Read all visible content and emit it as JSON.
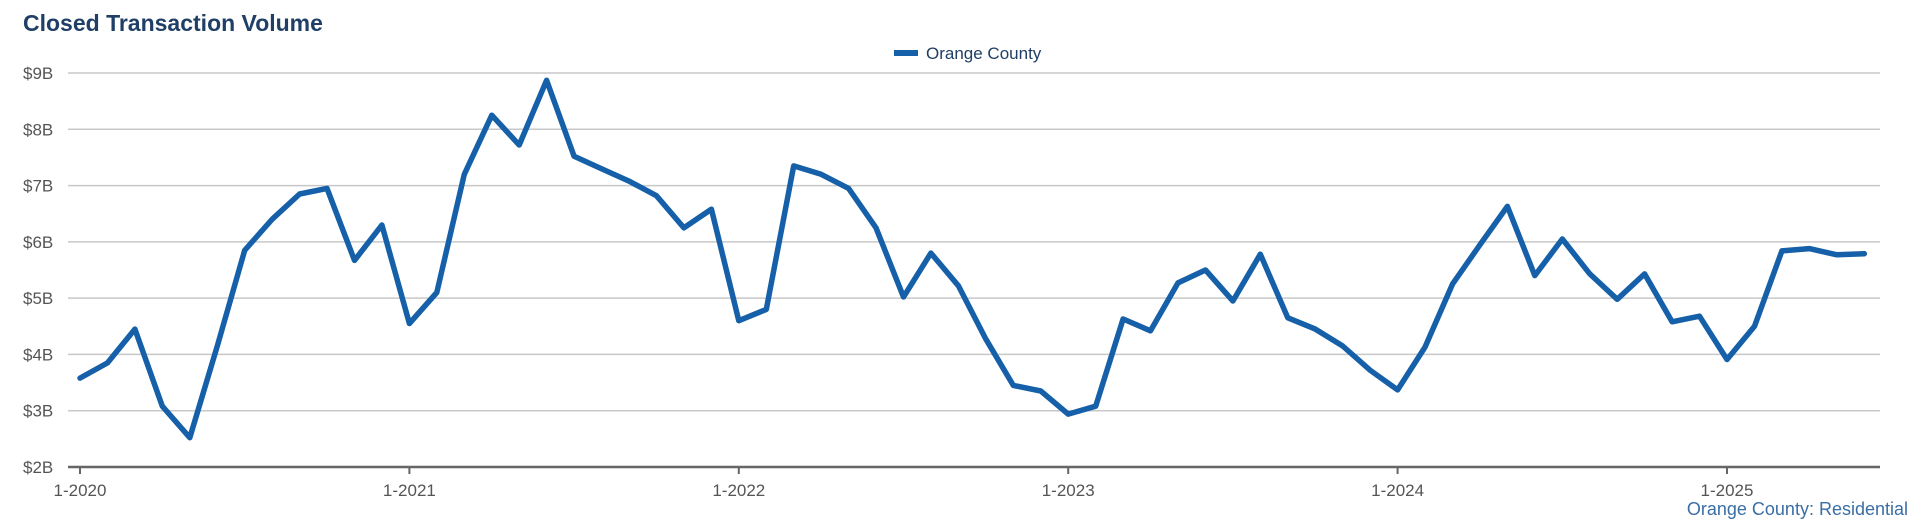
{
  "title": "Closed Transaction Volume",
  "footer": "Orange County: Residential",
  "colors": {
    "series": "#1560a8",
    "grid": "#c8c8c8",
    "axis": "#666666",
    "title": "#1f3f66"
  },
  "chart_data": {
    "type": "line",
    "title": "Closed Transaction Volume",
    "xlabel": "",
    "ylabel": "",
    "ylim": [
      2,
      9
    ],
    "y_unit": "billions USD",
    "y_ticks": [
      2,
      3,
      4,
      5,
      6,
      7,
      8,
      9
    ],
    "y_tick_labels": [
      "$2B",
      "$3B",
      "$4B",
      "$5B",
      "$6B",
      "$7B",
      "$8B",
      "$9B"
    ],
    "x_ticks": [
      "2020-01",
      "2021-01",
      "2022-01",
      "2023-01",
      "2024-01",
      "2025-01"
    ],
    "x_tick_labels": [
      "1-2020",
      "1-2021",
      "1-2022",
      "1-2023",
      "1-2024",
      "1-2025"
    ],
    "x_range": [
      "2020-01",
      "2025-07"
    ],
    "grid": true,
    "legend_position": "top-center",
    "series": [
      {
        "name": "Orange County",
        "color": "#1560a8",
        "points": [
          [
            "2020-01",
            3.58
          ],
          [
            "2020-02",
            3.85
          ],
          [
            "2020-03",
            4.45
          ],
          [
            "2020-04",
            3.08
          ],
          [
            "2020-05",
            2.52
          ],
          [
            "2020-06",
            4.15
          ],
          [
            "2020-07",
            5.85
          ],
          [
            "2020-08",
            6.4
          ],
          [
            "2020-09",
            6.85
          ],
          [
            "2020-10",
            6.95
          ],
          [
            "2020-11",
            5.67
          ],
          [
            "2020-12",
            6.3
          ],
          [
            "2021-01",
            4.55
          ],
          [
            "2021-02",
            5.1
          ],
          [
            "2021-03",
            7.2
          ],
          [
            "2021-04",
            8.25
          ],
          [
            "2021-05",
            7.72
          ],
          [
            "2021-06",
            8.87
          ],
          [
            "2021-07",
            7.52
          ],
          [
            "2021-08",
            7.3
          ],
          [
            "2021-09",
            7.08
          ],
          [
            "2021-10",
            6.82
          ],
          [
            "2021-11",
            6.25
          ],
          [
            "2021-12",
            6.58
          ],
          [
            "2022-01",
            4.6
          ],
          [
            "2022-02",
            4.8
          ],
          [
            "2022-03",
            7.35
          ],
          [
            "2022-04",
            7.2
          ],
          [
            "2022-05",
            6.95
          ],
          [
            "2022-06",
            6.25
          ],
          [
            "2022-07",
            5.02
          ],
          [
            "2022-08",
            5.8
          ],
          [
            "2022-09",
            5.22
          ],
          [
            "2022-10",
            4.27
          ],
          [
            "2022-11",
            3.45
          ],
          [
            "2022-12",
            3.35
          ],
          [
            "2023-01",
            2.94
          ],
          [
            "2023-02",
            3.08
          ],
          [
            "2023-03",
            4.63
          ],
          [
            "2023-04",
            4.42
          ],
          [
            "2023-05",
            5.27
          ],
          [
            "2023-06",
            5.5
          ],
          [
            "2023-07",
            4.95
          ],
          [
            "2023-08",
            5.78
          ],
          [
            "2023-09",
            4.65
          ],
          [
            "2023-10",
            4.45
          ],
          [
            "2023-11",
            4.15
          ],
          [
            "2023-12",
            3.72
          ],
          [
            "2024-01",
            3.37
          ],
          [
            "2024-02",
            4.13
          ],
          [
            "2024-03",
            5.25
          ],
          [
            "2024-04",
            5.95
          ],
          [
            "2024-05",
            6.63
          ],
          [
            "2024-06",
            5.4
          ],
          [
            "2024-07",
            6.05
          ],
          [
            "2024-08",
            5.43
          ],
          [
            "2024-09",
            4.98
          ],
          [
            "2024-10",
            5.43
          ],
          [
            "2024-11",
            4.58
          ],
          [
            "2024-12",
            4.68
          ],
          [
            "2025-01",
            3.91
          ],
          [
            "2025-02",
            4.5
          ],
          [
            "2025-03",
            5.84
          ],
          [
            "2025-04",
            5.88
          ],
          [
            "2025-05",
            5.77
          ],
          [
            "2025-06",
            5.79
          ]
        ]
      }
    ]
  }
}
